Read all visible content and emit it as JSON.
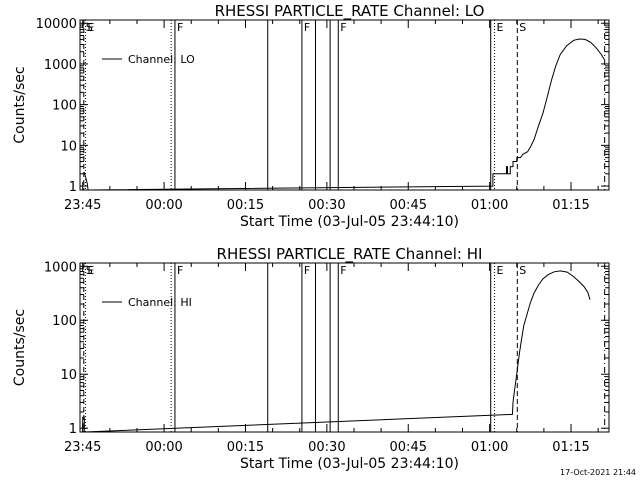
{
  "chart_data": [
    {
      "type": "line",
      "title": "RHESSI PARTICLE_RATE Channel: LO",
      "xlabel": "Start Time (03-Jul-05 23:44:10)",
      "ylabel": "Counts/sec",
      "x_scale": "time (minutes after 23:45)",
      "xlim": [
        -0.5,
        97
      ],
      "y_scale": "log",
      "ylim": [
        0.8,
        12000
      ],
      "x_ticks": [
        {
          "x": 0,
          "label": "23:45"
        },
        {
          "x": 15,
          "label": "00:00"
        },
        {
          "x": 30,
          "label": "00:15"
        },
        {
          "x": 45,
          "label": "00:30"
        },
        {
          "x": 60,
          "label": "00:45"
        },
        {
          "x": 75,
          "label": "01:00"
        },
        {
          "x": 90,
          "label": "01:15"
        }
      ],
      "y_ticks": [
        {
          "y": 1,
          "label": "1"
        },
        {
          "y": 10,
          "label": "10"
        },
        {
          "y": 100,
          "label": "100"
        },
        {
          "y": 1000,
          "label": "1000"
        },
        {
          "y": 10000,
          "label": "10000"
        }
      ],
      "legend": {
        "position": "top-left",
        "label": "Channel: LO"
      },
      "series": [
        {
          "name": "Channel: LO",
          "points": [
            [
              0.3,
              2.2
            ],
            [
              0.8,
              1.2
            ],
            [
              1.0,
              0.8
            ],
            [
              75.6,
              1.0
            ],
            [
              75.6,
              2.0
            ],
            [
              78.1,
              2.0
            ],
            [
              78.1,
              3.0
            ],
            [
              78.3,
              3.0
            ],
            [
              78.3,
              2.0
            ],
            [
              78.8,
              2.0
            ],
            [
              78.8,
              3.0
            ],
            [
              79.3,
              3.0
            ],
            [
              79.3,
              4.0
            ],
            [
              80.0,
              4.0
            ],
            [
              80.0,
              5.0
            ],
            [
              80.7,
              5.0
            ],
            [
              81.1,
              6.0
            ],
            [
              82.0,
              7.0
            ],
            [
              82.5,
              9.0
            ],
            [
              83.2,
              14.0
            ],
            [
              84.0,
              30.0
            ],
            [
              84.8,
              60.0
            ],
            [
              85.6,
              150.0
            ],
            [
              86.4,
              400.0
            ],
            [
              87.2,
              900.0
            ],
            [
              88.0,
              1700.0
            ],
            [
              89.2,
              2800.0
            ],
            [
              90.5,
              3800.0
            ],
            [
              91.5,
              4100.0
            ],
            [
              92.6,
              4000.0
            ],
            [
              93.6,
              3400.0
            ],
            [
              94.6,
              2500.0
            ],
            [
              95.6,
              1700.0
            ],
            [
              96.1,
              1300.0
            ]
          ]
        }
      ],
      "markers": [
        {
          "x": 0.2,
          "label": "S",
          "style": "dashed"
        },
        {
          "x": 0.5,
          "label": "E",
          "style": "dotted"
        },
        {
          "x": 16.3,
          "label": "",
          "style": "dotted"
        },
        {
          "x": 17.0,
          "label": "F",
          "style": "solid"
        },
        {
          "x": 34.1,
          "label": "",
          "style": "solid"
        },
        {
          "x": 40.4,
          "label": "F",
          "style": "solid"
        },
        {
          "x": 42.9,
          "label": "",
          "style": "solid"
        },
        {
          "x": 45.6,
          "label": "",
          "style": "solid"
        },
        {
          "x": 47.1,
          "label": "F",
          "style": "solid"
        },
        {
          "x": 75.2,
          "label": "",
          "style": "solid"
        },
        {
          "x": 75.9,
          "label": "E",
          "style": "dotted"
        },
        {
          "x": 80.1,
          "label": "S",
          "style": "dashed"
        },
        {
          "x": 96.2,
          "label": "",
          "style": "dashdot"
        }
      ]
    },
    {
      "type": "line",
      "title": "RHESSI PARTICLE_RATE Channel: HI",
      "xlabel": "Start Time (03-Jul-05 23:44:10)",
      "ylabel": "Counts/sec",
      "x_scale": "time (minutes after 23:45)",
      "xlim": [
        -0.5,
        97
      ],
      "y_scale": "log",
      "ylim": [
        0.85,
        1150
      ],
      "x_ticks": [
        {
          "x": 0,
          "label": "23:45"
        },
        {
          "x": 15,
          "label": "00:00"
        },
        {
          "x": 30,
          "label": "00:15"
        },
        {
          "x": 45,
          "label": "00:30"
        },
        {
          "x": 60,
          "label": "00:45"
        },
        {
          "x": 75,
          "label": "01:00"
        },
        {
          "x": 90,
          "label": "01:15"
        }
      ],
      "y_ticks": [
        {
          "y": 1,
          "label": "1"
        },
        {
          "y": 10,
          "label": "10"
        },
        {
          "y": 100,
          "label": "100"
        },
        {
          "y": 1000,
          "label": "1000"
        }
      ],
      "legend": {
        "position": "top-left",
        "label": "Channel: HI"
      },
      "series": [
        {
          "name": "Channel: HI",
          "points": [
            [
              0.0,
              0.85
            ],
            [
              0.0,
              1.6
            ],
            [
              0.3,
              1.6
            ],
            [
              0.3,
              0.85
            ],
            [
              79.2,
              1.8
            ],
            [
              79.3,
              3.0
            ],
            [
              79.7,
              6.0
            ],
            [
              80.1,
              12.0
            ],
            [
              80.5,
              25.0
            ],
            [
              80.9,
              45.0
            ],
            [
              81.3,
              80.0
            ],
            [
              81.9,
              130.0
            ],
            [
              82.5,
              210.0
            ],
            [
              83.2,
              320.0
            ],
            [
              84.0,
              450.0
            ],
            [
              84.8,
              580.0
            ],
            [
              85.8,
              700.0
            ],
            [
              86.9,
              790.0
            ],
            [
              88.0,
              820.0
            ],
            [
              89.3,
              780.0
            ],
            [
              90.4,
              650.0
            ],
            [
              91.5,
              520.0
            ],
            [
              92.4,
              420.0
            ],
            [
              93.1,
              330.0
            ],
            [
              93.5,
              240.0
            ]
          ]
        }
      ],
      "markers": [
        {
          "x": 0.2,
          "label": "S",
          "style": "dashed"
        },
        {
          "x": 0.5,
          "label": "E",
          "style": "dotted"
        },
        {
          "x": 16.3,
          "label": "",
          "style": "dotted"
        },
        {
          "x": 17.0,
          "label": "F",
          "style": "solid"
        },
        {
          "x": 34.1,
          "label": "",
          "style": "solid"
        },
        {
          "x": 40.4,
          "label": "F",
          "style": "solid"
        },
        {
          "x": 42.9,
          "label": "",
          "style": "solid"
        },
        {
          "x": 45.6,
          "label": "",
          "style": "solid"
        },
        {
          "x": 47.1,
          "label": "F",
          "style": "solid"
        },
        {
          "x": 75.2,
          "label": "",
          "style": "solid"
        },
        {
          "x": 75.9,
          "label": "E",
          "style": "dotted"
        },
        {
          "x": 80.1,
          "label": "S",
          "style": "dashed"
        },
        {
          "x": 96.2,
          "label": "",
          "style": "dashdot"
        }
      ]
    }
  ],
  "footer": {
    "timestamp": "17-Oct-2021 21:44"
  }
}
